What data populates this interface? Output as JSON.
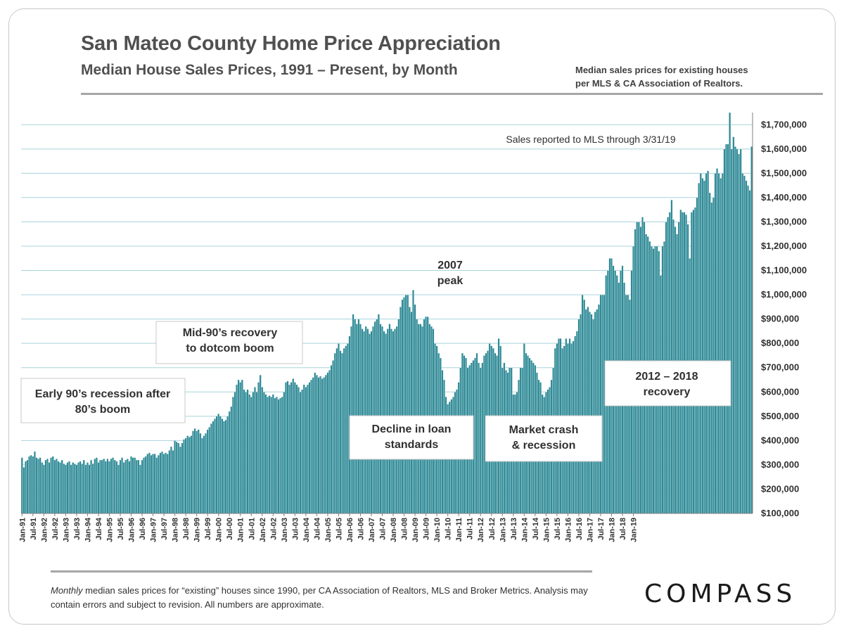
{
  "header": {
    "title": "San Mateo County Home Price Appreciation",
    "subtitle": "Median House Sales Prices, 1991 – Present, by Month",
    "note_line1": "Median sales prices for existing houses",
    "note_line2": "per MLS & CA Association of Realtors."
  },
  "footer": {
    "footnote_em": "Monthly",
    "footnote_rest": " median sales prices for “existing” houses since 1990, per CA Association of Realtors, MLS and Broker Metrics.  Analysis may contain errors and subject to revision. All numbers are approximate.",
    "logo_text": "COMPASS"
  },
  "colors": {
    "bar": "#2e8a96",
    "bar_edge": "#ffffff",
    "grid": "#a8d3dc",
    "text": "#505050"
  },
  "chart_data": {
    "type": "bar",
    "title": "San Mateo County Home Price Appreciation",
    "subtitle": "Median House Sales Prices, 1991 – Present, by Month",
    "ylim": [
      100000,
      1750000
    ],
    "y_ticks": [
      100000,
      200000,
      300000,
      400000,
      500000,
      600000,
      700000,
      800000,
      900000,
      1000000,
      1100000,
      1200000,
      1300000,
      1400000,
      1500000,
      1600000,
      1700000
    ],
    "y_tick_labels": [
      "$100,000",
      "$200,000",
      "$300,000",
      "$400,000",
      "$500,000",
      "$600,000",
      "$700,000",
      "$800,000",
      "$900,000",
      "$1,000,000",
      "$1,100,000",
      "$1,200,000",
      "$1,300,000",
      "$1,400,000",
      "$1,500,000",
      "$1,600,000",
      "$1,700,000"
    ],
    "y_axis_side": "right",
    "grid": true,
    "x_tick_labels": [
      "Jan-91",
      "Jul-91",
      "Jan-92",
      "Jul-92",
      "Jan-93",
      "Jul-93",
      "Jan-94",
      "Jul-94",
      "Jan-95",
      "Jul-95",
      "Jan-96",
      "Jul-96",
      "Jan-97",
      "Jul-97",
      "Jan-98",
      "Jul-98",
      "Jan-99",
      "Jul-99",
      "Jan-00",
      "Jul-00",
      "Jan-01",
      "Jul-01",
      "Jan-02",
      "Jul-02",
      "Jan-03",
      "Jul-03",
      "Jan-04",
      "Jul-04",
      "Jan-05",
      "Jul-05",
      "Jan-06",
      "Jul-06",
      "Jan-07",
      "Jul-07",
      "Jan-08",
      "Jul-08",
      "Jan-09",
      "Jul-09",
      "Jan-10",
      "Jul-10",
      "Jan-11",
      "Jul-11",
      "Jan-12",
      "Jul-12",
      "Jan-13",
      "Jul-13",
      "Jan-14",
      "Jul-14",
      "Jan-15",
      "Jul-15",
      "Jan-16",
      "Jul-16",
      "Jan-17",
      "Jul-17",
      "Jan-18",
      "Jul-18",
      "Jan-19"
    ],
    "series": [
      {
        "values": [
          330000,
          290000,
          315000,
          320000,
          335000,
          340000,
          335000,
          355000,
          330000,
          325000,
          330000,
          310000,
          300000,
          320000,
          325000,
          310000,
          330000,
          335000,
          320000,
          325000,
          315000,
          310000,
          320000,
          305000,
          300000,
          310000,
          315000,
          300000,
          310000,
          305000,
          300000,
          310000,
          315000,
          305000,
          320000,
          300000,
          310000,
          300000,
          320000,
          305000,
          325000,
          330000,
          310000,
          320000,
          320000,
          325000,
          315000,
          325000,
          315000,
          325000,
          330000,
          320000,
          315000,
          300000,
          320000,
          330000,
          310000,
          320000,
          325000,
          315000,
          335000,
          330000,
          330000,
          320000,
          320000,
          300000,
          320000,
          330000,
          335000,
          345000,
          350000,
          340000,
          345000,
          345000,
          330000,
          340000,
          350000,
          355000,
          345000,
          350000,
          345000,
          360000,
          375000,
          360000,
          400000,
          395000,
          390000,
          375000,
          390000,
          405000,
          410000,
          420000,
          415000,
          420000,
          440000,
          450000,
          440000,
          445000,
          430000,
          410000,
          420000,
          430000,
          445000,
          455000,
          470000,
          480000,
          490000,
          500000,
          510000,
          500000,
          490000,
          480000,
          485000,
          500000,
          520000,
          540000,
          580000,
          600000,
          630000,
          650000,
          640000,
          650000,
          610000,
          600000,
          610000,
          590000,
          580000,
          600000,
          620000,
          600000,
          640000,
          670000,
          620000,
          600000,
          590000,
          580000,
          585000,
          580000,
          590000,
          575000,
          580000,
          570000,
          575000,
          580000,
          600000,
          640000,
          645000,
          630000,
          640000,
          655000,
          640000,
          630000,
          620000,
          600000,
          610000,
          630000,
          620000,
          630000,
          640000,
          650000,
          660000,
          680000,
          670000,
          660000,
          665000,
          655000,
          660000,
          670000,
          680000,
          690000,
          710000,
          730000,
          760000,
          780000,
          800000,
          770000,
          760000,
          780000,
          790000,
          800000,
          830000,
          870000,
          920000,
          900000,
          880000,
          900000,
          880000,
          860000,
          850000,
          870000,
          860000,
          840000,
          850000,
          870000,
          890000,
          900000,
          920000,
          880000,
          870000,
          850000,
          840000,
          860000,
          880000,
          860000,
          850000,
          860000,
          870000,
          900000,
          950000,
          980000,
          990000,
          1000000,
          1000000,
          950000,
          930000,
          1020000,
          960000,
          900000,
          880000,
          880000,
          870000,
          900000,
          910000,
          910000,
          880000,
          870000,
          860000,
          800000,
          790000,
          760000,
          740000,
          690000,
          650000,
          580000,
          550000,
          560000,
          570000,
          580000,
          600000,
          610000,
          640000,
          700000,
          760000,
          750000,
          740000,
          700000,
          710000,
          720000,
          730000,
          740000,
          760000,
          720000,
          700000,
          720000,
          750000,
          760000,
          770000,
          800000,
          790000,
          780000,
          760000,
          750000,
          820000,
          790000,
          700000,
          720000,
          690000,
          680000,
          700000,
          700000,
          590000,
          590000,
          600000,
          650000,
          700000,
          700000,
          800000,
          760000,
          750000,
          740000,
          730000,
          720000,
          710000,
          680000,
          650000,
          640000,
          590000,
          580000,
          600000,
          610000,
          620000,
          650000,
          700000,
          780000,
          800000,
          820000,
          820000,
          780000,
          790000,
          820000,
          800000,
          820000,
          800000,
          810000,
          830000,
          850000,
          900000,
          920000,
          1000000,
          980000,
          940000,
          950000,
          930000,
          920000,
          900000,
          930000,
          940000,
          960000,
          1000000,
          1000000,
          1000000,
          1080000,
          1100000,
          1150000,
          1150000,
          1120000,
          1100000,
          1080000,
          1050000,
          1100000,
          1120000,
          1050000,
          1000000,
          1000000,
          980000,
          1100000,
          1200000,
          1270000,
          1300000,
          1300000,
          1280000,
          1320000,
          1300000,
          1250000,
          1240000,
          1220000,
          1200000,
          1190000,
          1200000,
          1200000,
          1180000,
          1080000,
          1200000,
          1220000,
          1300000,
          1320000,
          1340000,
          1390000,
          1310000,
          1280000,
          1250000,
          1300000,
          1350000,
          1340000,
          1340000,
          1330000,
          1290000,
          1150000,
          1340000,
          1350000,
          1360000,
          1400000,
          1460000,
          1500000,
          1480000,
          1470000,
          1500000,
          1510000,
          1420000,
          1380000,
          1400000,
          1500000,
          1520000,
          1500000,
          1480000,
          1500000,
          1600000,
          1620000,
          1620000,
          1750000,
          1600000,
          1650000,
          1610000,
          1600000,
          1580000,
          1600000,
          1500000,
          1490000,
          1470000,
          1450000,
          1430000,
          1610000
        ]
      }
    ],
    "annotations": [
      {
        "lines": [
          "Sales reported to MLS through 3/31/19"
        ],
        "boxed": false
      },
      {
        "lines": [
          "2007",
          "peak"
        ],
        "boxed": false
      },
      {
        "lines": [
          "Mid-90’s recovery",
          "to dotcom boom"
        ],
        "boxed": true
      },
      {
        "lines": [
          "Early 90’s recession after",
          "80’s boom"
        ],
        "boxed": true
      },
      {
        "lines": [
          "Decline in loan",
          "standards"
        ],
        "boxed": true
      },
      {
        "lines": [
          "Market crash",
          "& recession"
        ],
        "boxed": true
      },
      {
        "lines": [
          "2012 – 2018",
          "recovery"
        ],
        "boxed": true
      }
    ]
  }
}
